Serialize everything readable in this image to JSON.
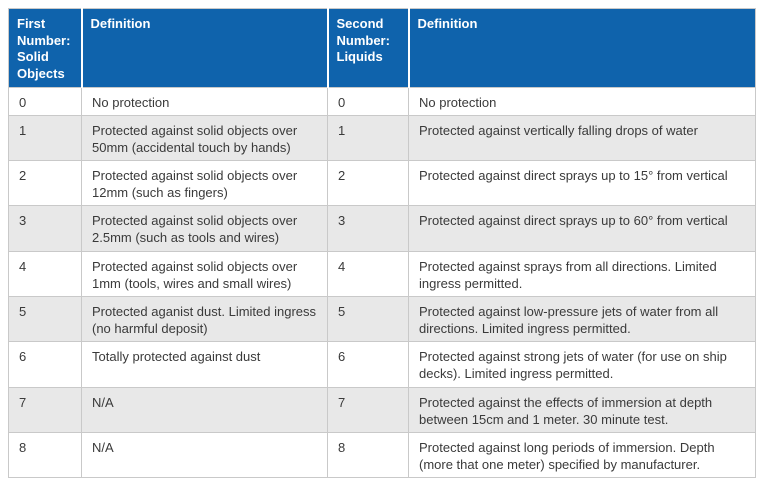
{
  "chart_data": {
    "type": "table",
    "columns": [
      "First Number: Solid Objects",
      "Definition",
      "Second Number: Liquids",
      "Definition"
    ],
    "rows": [
      [
        "0",
        "No protection",
        "0",
        "No protection"
      ],
      [
        "1",
        "Protected against solid objects over 50mm (accidental touch by hands)",
        "1",
        "Protected against vertically falling drops of water"
      ],
      [
        "2",
        "Protected against solid objects over 12mm (such as fingers)",
        "2",
        "Protected against direct sprays up to 15° from vertical"
      ],
      [
        "3",
        "Protected against solid objects over 2.5mm (such as tools and wires)",
        "3",
        "Protected against direct sprays up to 60° from vertical"
      ],
      [
        "4",
        "Protected against solid objects over 1mm (tools, wires and small wires)",
        "4",
        "Protected against sprays from all directions. Limited ingress permitted."
      ],
      [
        "5",
        "Protected aganist dust. Limited ingress (no harmful deposit)",
        "5",
        "Protected against low-pressure jets of water from all directions. Limited ingress permitted."
      ],
      [
        "6",
        "Totally protected against dust",
        "6",
        "Protected against strong jets of water (for use on ship decks). Limited ingress permitted."
      ],
      [
        "7",
        "N/A",
        "7",
        "Protected against the effects of immersion at depth between 15cm and 1 meter. 30 minute test."
      ],
      [
        "8",
        "N/A",
        "8",
        "Protected against long periods of immersion. Depth (more that one meter) specified by manufacturer."
      ]
    ]
  },
  "colors": {
    "header_bg": "#0F63AC",
    "header_text": "#FFFFFF",
    "stripe_bg": "#E8E8E8",
    "row_bg": "#FFFFFF",
    "border": "#C9C9C9",
    "body_text": "#3A3A3A",
    "separator": "#FFFFFF"
  }
}
